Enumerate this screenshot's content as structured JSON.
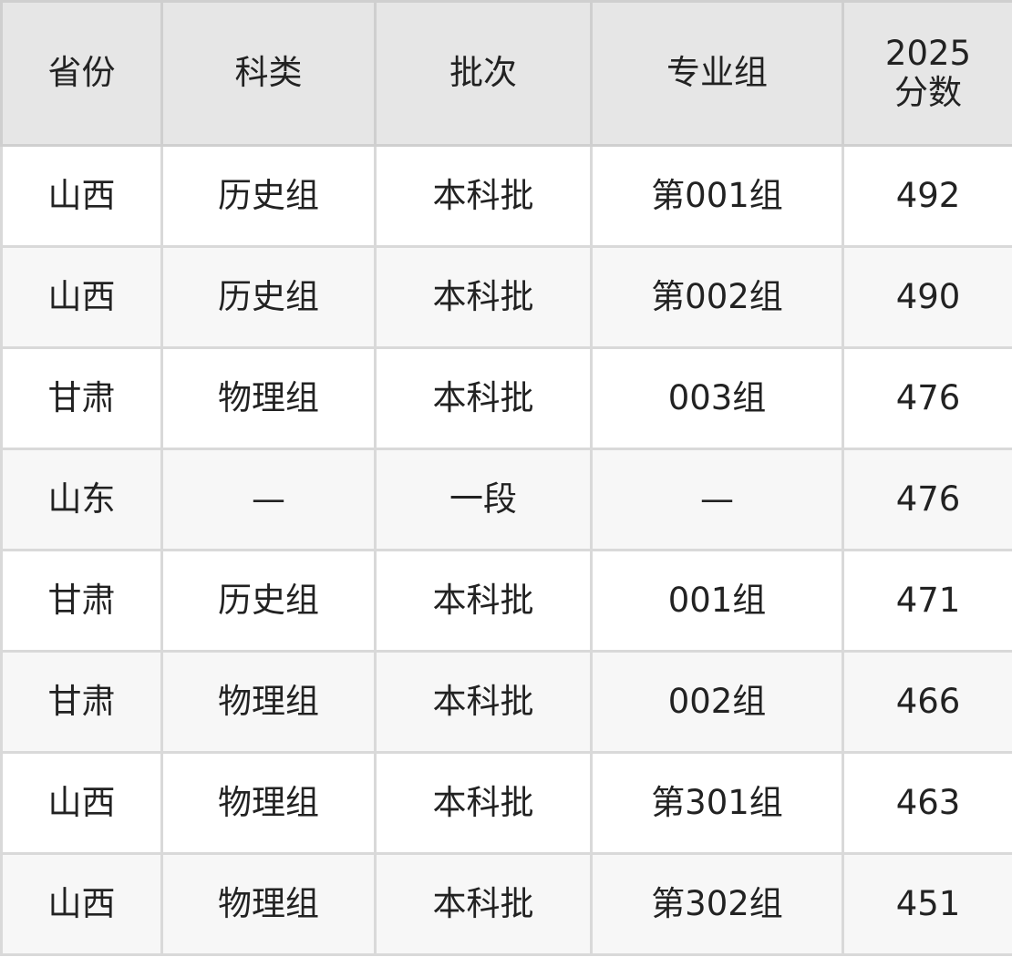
{
  "headers": [
    "省份",
    "科类",
    "批次",
    "专业组",
    "2025\n分数"
  ],
  "header_score_line1": "2025",
  "header_score_line2": "分数",
  "rows": [
    [
      "山西",
      "历史组",
      "本科批",
      "第001组",
      "492"
    ],
    [
      "山西",
      "历史组",
      "本科批",
      "第002组",
      "490"
    ],
    [
      "甘肃",
      "物理组",
      "本科批",
      "003组",
      "476"
    ],
    [
      "山东",
      "—",
      "一段",
      "—",
      "476"
    ],
    [
      "甘肃",
      "历史组",
      "本科批",
      "001组",
      "471"
    ],
    [
      "甘肃",
      "物理组",
      "本科批",
      "002组",
      "466"
    ],
    [
      "山西",
      "物理组",
      "本科批",
      "第301组",
      "463"
    ],
    [
      "山西",
      "物理组",
      "本科批",
      "第302组",
      "451"
    ]
  ]
}
